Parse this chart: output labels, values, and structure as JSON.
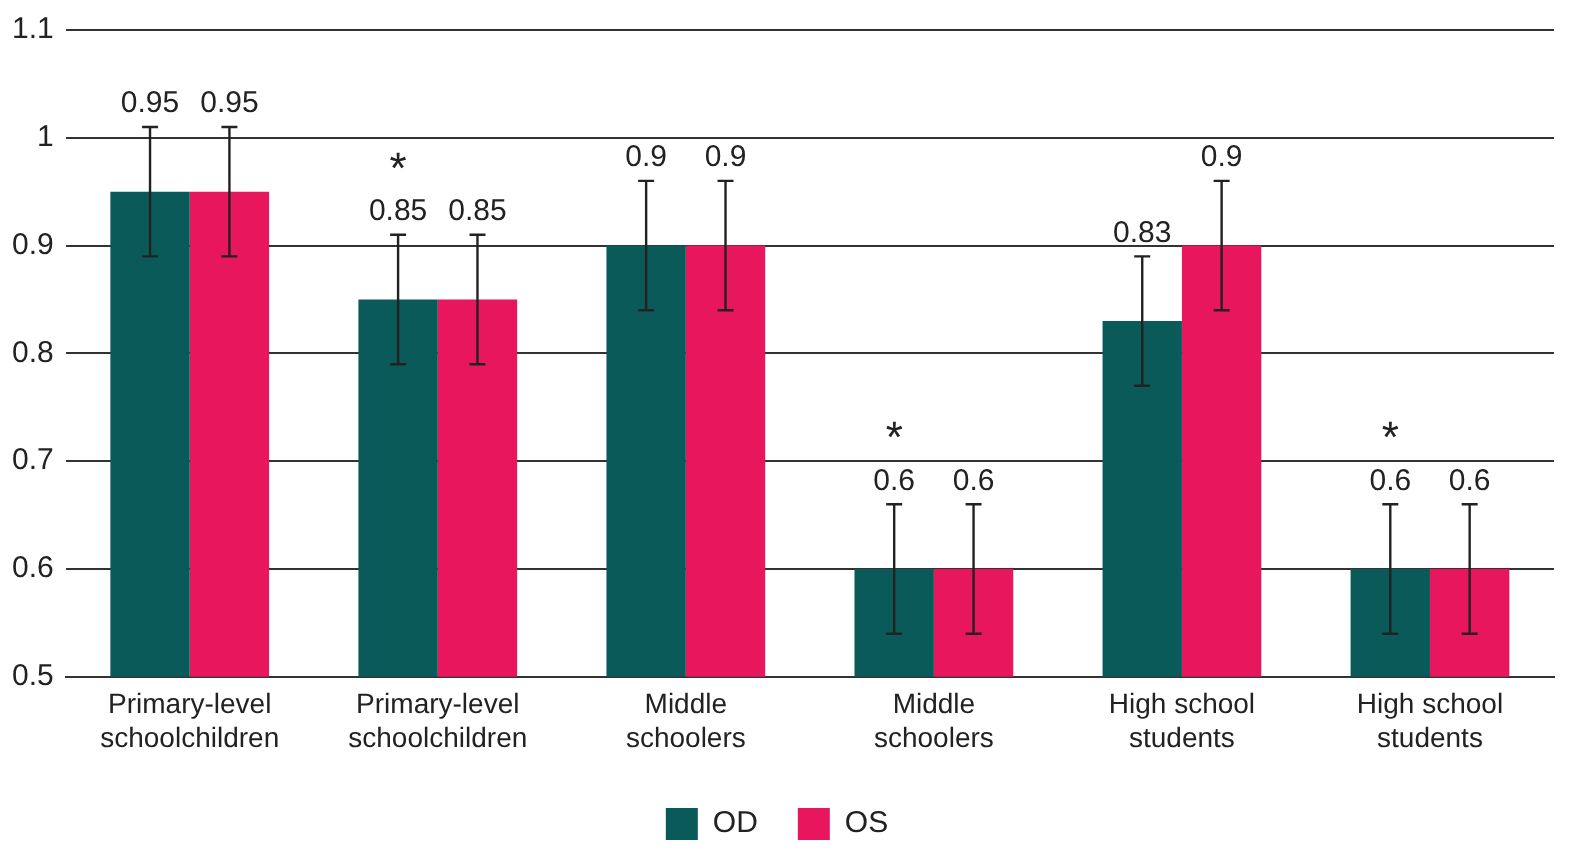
{
  "chart_data": {
    "type": "bar",
    "categories": [
      "Primary-level\nschoolchildren",
      "Primary-level\nschoolchildren",
      "Middle\nschoolers",
      "Middle\nschoolers",
      "High school\nstudents",
      "High school\nstudents"
    ],
    "series": [
      {
        "name": "OD",
        "color": "#0b5a5a",
        "values": [
          0.95,
          0.85,
          0.9,
          0.6,
          0.83,
          0.6
        ],
        "errors": [
          0.06,
          0.06,
          0.06,
          0.06,
          0.06,
          0.06
        ]
      },
      {
        "name": "OS",
        "color": "#e8175d",
        "values": [
          0.95,
          0.85,
          0.9,
          0.6,
          0.9,
          0.6
        ],
        "errors": [
          0.06,
          0.06,
          0.06,
          0.06,
          0.06,
          0.06
        ]
      }
    ],
    "ylim": [
      0.5,
      1.1
    ],
    "yticks": [
      0.5,
      0.6,
      0.7,
      0.8,
      0.9,
      1,
      1.1
    ],
    "grid": "y",
    "legend": "bottom",
    "data_labels": true,
    "annotations": [
      "*",
      "*",
      "*"
    ]
  }
}
